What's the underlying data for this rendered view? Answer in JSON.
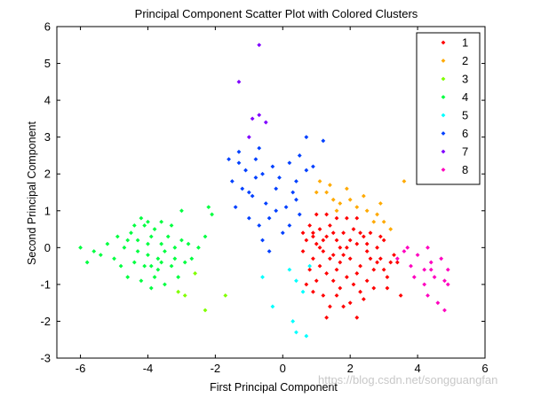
{
  "chart_data": {
    "type": "scatter",
    "title": "Principal Component Scatter Plot with Colored Clusters",
    "xlabel": "First Principal Component",
    "ylabel": "Second Principal Component",
    "xlim": [
      -6.7,
      6
    ],
    "ylim": [
      -3,
      6
    ],
    "xticks": [
      -6,
      -4,
      -2,
      0,
      2,
      4,
      6
    ],
    "yticks": [
      -3,
      -2,
      -1,
      0,
      1,
      2,
      3,
      4,
      5,
      6
    ],
    "grid": false,
    "legend_position": "top-right",
    "marker": "diamond",
    "series": [
      {
        "name": "1",
        "color": "#ff0000",
        "points": [
          [
            0.8,
            0.6
          ],
          [
            0.9,
            0.3
          ],
          [
            1.0,
            0.1
          ],
          [
            1.1,
            0.5
          ],
          [
            1.2,
            -0.1
          ],
          [
            1.3,
            0.3
          ],
          [
            1.4,
            0.6
          ],
          [
            1.5,
            -0.2
          ],
          [
            1.6,
            0.2
          ],
          [
            1.7,
            -0.4
          ],
          [
            1.8,
            0.4
          ],
          [
            1.9,
            0.0
          ],
          [
            2.0,
            -0.3
          ],
          [
            2.1,
            0.5
          ],
          [
            2.2,
            0.1
          ],
          [
            2.3,
            -0.5
          ],
          [
            2.4,
            0.3
          ],
          [
            2.5,
            -0.1
          ],
          [
            2.6,
            0.4
          ],
          [
            2.7,
            -0.6
          ],
          [
            2.8,
            0.0
          ],
          [
            2.9,
            -0.3
          ],
          [
            3.0,
            0.2
          ],
          [
            3.1,
            -0.8
          ],
          [
            3.2,
            -0.4
          ],
          [
            0.9,
            -0.3
          ],
          [
            1.1,
            -0.5
          ],
          [
            1.3,
            -0.7
          ],
          [
            1.5,
            -0.9
          ],
          [
            1.7,
            -1.1
          ],
          [
            1.9,
            -0.8
          ],
          [
            2.1,
            -1.0
          ],
          [
            2.3,
            -1.2
          ],
          [
            2.5,
            -0.9
          ],
          [
            2.7,
            -1.1
          ],
          [
            1.2,
            -1.3
          ],
          [
            1.4,
            -1.6
          ],
          [
            1.6,
            -1.3
          ],
          [
            2.0,
            -1.5
          ],
          [
            2.4,
            -1.4
          ],
          [
            1.0,
            0.9
          ],
          [
            1.3,
            0.9
          ],
          [
            1.6,
            0.8
          ],
          [
            1.9,
            0.8
          ],
          [
            2.2,
            0.8
          ],
          [
            0.7,
            0.2
          ],
          [
            0.6,
            -0.1
          ],
          [
            0.8,
            -0.6
          ],
          [
            1.0,
            -0.9
          ],
          [
            0.9,
            -1.2
          ],
          [
            1.8,
            -0.2
          ],
          [
            2.0,
            0.2
          ],
          [
            1.5,
            0.4
          ],
          [
            1.2,
            0.2
          ],
          [
            2.6,
            -0.3
          ],
          [
            2.9,
            0.3
          ],
          [
            3.3,
            -0.2
          ],
          [
            3.0,
            -0.6
          ],
          [
            1.4,
            -0.3
          ],
          [
            1.7,
            0.0
          ],
          [
            2.2,
            -0.7
          ],
          [
            2.8,
            -0.4
          ],
          [
            1.1,
            0.0
          ],
          [
            0.9,
            0.4
          ],
          [
            2.3,
            0.4
          ],
          [
            1.6,
            -0.6
          ],
          [
            2.5,
            0.1
          ],
          [
            3.4,
            -0.4
          ],
          [
            1.8,
            -1.6
          ],
          [
            2.2,
            -1.9
          ],
          [
            1.3,
            -1.9
          ],
          [
            0.7,
            -1.0
          ],
          [
            0.6,
            0.4
          ],
          [
            3.5,
            -1.3
          ],
          [
            3.1,
            -1.1
          ]
        ]
      },
      {
        "name": "2",
        "color": "#ffaa00",
        "points": [
          [
            1.1,
            1.8
          ],
          [
            1.3,
            1.5
          ],
          [
            1.5,
            1.3
          ],
          [
            1.7,
            1.2
          ],
          [
            2.0,
            1.3
          ],
          [
            2.2,
            1.1
          ],
          [
            2.5,
            1.0
          ],
          [
            2.8,
            0.9
          ],
          [
            3.0,
            0.7
          ],
          [
            3.2,
            0.5
          ],
          [
            1.4,
            1.7
          ],
          [
            1.9,
            1.6
          ],
          [
            1.0,
            1.5
          ],
          [
            2.4,
            1.4
          ],
          [
            3.6,
            1.8
          ],
          [
            2.7,
            0.7
          ],
          [
            1.6,
            1.0
          ],
          [
            2.9,
            1.2
          ]
        ]
      },
      {
        "name": "3",
        "color": "#80ff00",
        "points": [
          [
            -2.6,
            -0.7
          ],
          [
            -2.3,
            -1.7
          ],
          [
            -1.7,
            -1.3
          ],
          [
            -2.9,
            -1.3
          ],
          [
            -3.1,
            -1.2
          ]
        ]
      },
      {
        "name": "4",
        "color": "#00ff40",
        "points": [
          [
            -6.0,
            0.0
          ],
          [
            -5.6,
            -0.1
          ],
          [
            -5.4,
            -0.2
          ],
          [
            -5.2,
            0.1
          ],
          [
            -5.0,
            -0.3
          ],
          [
            -4.9,
            0.3
          ],
          [
            -4.8,
            -0.5
          ],
          [
            -4.7,
            0.0
          ],
          [
            -4.6,
            -0.8
          ],
          [
            -4.5,
            0.4
          ],
          [
            -4.4,
            -0.4
          ],
          [
            -4.3,
            0.2
          ],
          [
            -4.2,
            -0.9
          ],
          [
            -4.1,
            0.6
          ],
          [
            -4.0,
            -0.2
          ],
          [
            -3.9,
            -1.1
          ],
          [
            -3.8,
            0.5
          ],
          [
            -3.7,
            -0.6
          ],
          [
            -3.6,
            0.1
          ],
          [
            -3.5,
            -1.0
          ],
          [
            -3.4,
            0.3
          ],
          [
            -3.3,
            -0.5
          ],
          [
            -3.2,
            0.0
          ],
          [
            -3.1,
            -0.8
          ],
          [
            -3.0,
            0.2
          ],
          [
            -2.9,
            -0.4
          ],
          [
            -2.8,
            0.1
          ],
          [
            -2.7,
            -0.3
          ],
          [
            -2.5,
            0.0
          ],
          [
            -2.3,
            0.3
          ],
          [
            -4.2,
            0.8
          ],
          [
            -4.0,
            0.7
          ],
          [
            -3.6,
            0.7
          ],
          [
            -3.9,
            0.3
          ],
          [
            -3.7,
            -0.3
          ],
          [
            -3.5,
            -0.1
          ],
          [
            -4.1,
            -0.5
          ],
          [
            -3.8,
            -0.8
          ],
          [
            -4.4,
            0.6
          ],
          [
            -3.3,
            0.6
          ],
          [
            -3.0,
            1.0
          ],
          [
            -2.2,
            1.1
          ],
          [
            -2.1,
            0.9
          ],
          [
            -5.8,
            -0.4
          ],
          [
            -3.6,
            -0.4
          ],
          [
            -4.3,
            -0.1
          ],
          [
            -3.2,
            -0.3
          ],
          [
            -4.6,
            0.2
          ],
          [
            -3.9,
            -0.5
          ],
          [
            -4.0,
            0.1
          ]
        ]
      },
      {
        "name": "5",
        "color": "#00ffff",
        "points": [
          [
            0.2,
            -0.6
          ],
          [
            0.4,
            -0.9
          ],
          [
            0.6,
            -1.2
          ],
          [
            -0.6,
            -0.8
          ],
          [
            -0.3,
            -1.6
          ],
          [
            0.3,
            -2.0
          ],
          [
            0.4,
            -2.3
          ],
          [
            0.7,
            -2.4
          ],
          [
            0.8,
            -0.5
          ]
        ]
      },
      {
        "name": "6",
        "color": "#0040ff",
        "points": [
          [
            -1.6,
            2.4
          ],
          [
            -1.3,
            2.3
          ],
          [
            -1.1,
            2.1
          ],
          [
            -0.8,
            2.4
          ],
          [
            -0.6,
            2.0
          ],
          [
            -0.3,
            2.2
          ],
          [
            -0.1,
            1.9
          ],
          [
            0.2,
            2.3
          ],
          [
            0.4,
            1.8
          ],
          [
            0.7,
            2.1
          ],
          [
            0.9,
            2.2
          ],
          [
            1.2,
            2.9
          ],
          [
            0.7,
            3.0
          ],
          [
            -0.7,
            2.7
          ],
          [
            -1.5,
            1.8
          ],
          [
            -1.2,
            1.6
          ],
          [
            -0.9,
            1.4
          ],
          [
            -0.5,
            1.2
          ],
          [
            -0.2,
            1.0
          ],
          [
            0.1,
            1.1
          ],
          [
            0.4,
            1.3
          ],
          [
            -1.4,
            1.1
          ],
          [
            -1.0,
            0.8
          ],
          [
            -0.7,
            0.6
          ],
          [
            -0.4,
            0.8
          ],
          [
            -0.6,
            0.2
          ],
          [
            -0.4,
            -0.1
          ],
          [
            0.3,
            1.5
          ],
          [
            0.5,
            0.9
          ],
          [
            0.2,
            0.6
          ],
          [
            -1.3,
            2.6
          ],
          [
            -0.2,
            1.6
          ],
          [
            0.0,
            0.4
          ],
          [
            -0.8,
            1.9
          ],
          [
            0.5,
            2.5
          ],
          [
            -1.0,
            1.5
          ]
        ]
      },
      {
        "name": "7",
        "color": "#8000ff",
        "points": [
          [
            -0.7,
            5.5
          ],
          [
            -1.3,
            4.5
          ],
          [
            -0.9,
            3.5
          ],
          [
            -0.7,
            3.6
          ],
          [
            -0.5,
            3.4
          ],
          [
            -1.0,
            3.0
          ]
        ]
      },
      {
        "name": "8",
        "color": "#ff00bf",
        "points": [
          [
            3.4,
            -0.3
          ],
          [
            3.6,
            -0.1
          ],
          [
            3.8,
            -0.5
          ],
          [
            4.0,
            -0.2
          ],
          [
            4.2,
            -0.6
          ],
          [
            4.3,
            0.0
          ],
          [
            4.4,
            -0.4
          ],
          [
            4.5,
            -0.8
          ],
          [
            4.7,
            -0.3
          ],
          [
            4.8,
            -0.9
          ],
          [
            4.9,
            -1.0
          ],
          [
            4.6,
            -1.5
          ],
          [
            4.3,
            -1.3
          ],
          [
            3.9,
            -0.8
          ],
          [
            4.2,
            -1.0
          ],
          [
            4.8,
            -1.7
          ],
          [
            3.7,
            0.0
          ],
          [
            4.4,
            -0.6
          ],
          [
            4.9,
            -0.6
          ]
        ]
      }
    ]
  }
}
